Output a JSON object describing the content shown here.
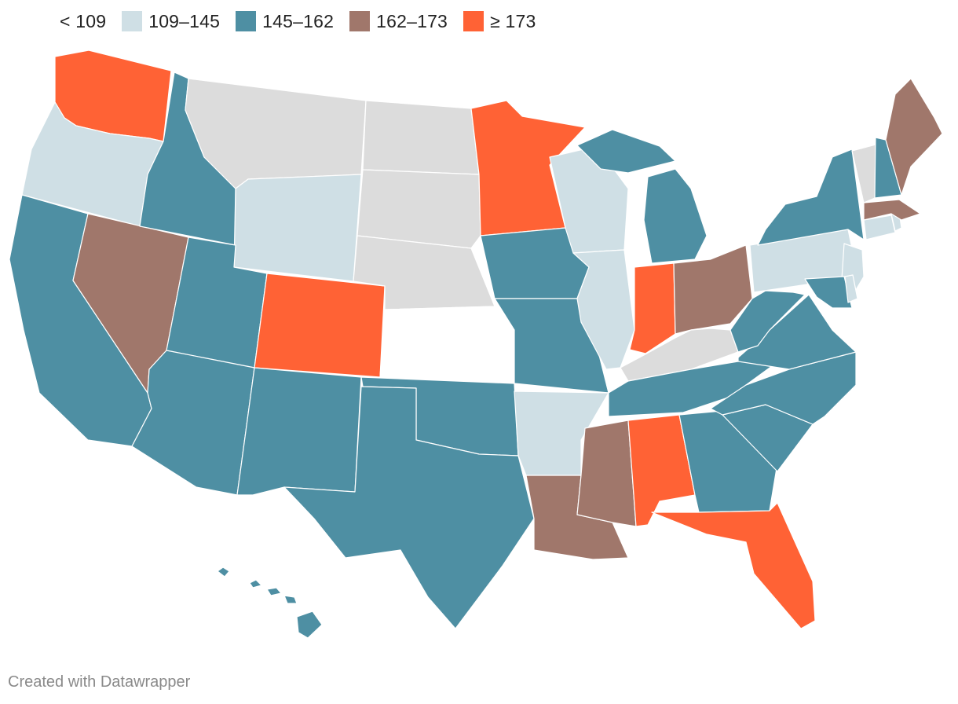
{
  "legend": [
    {
      "label": "< 109",
      "color": "#ffffff"
    },
    {
      "label": "109–145",
      "color": "#cfdfe5"
    },
    {
      "label": "145–162",
      "color": "#4e8fa3"
    },
    {
      "label": "162–173",
      "color": "#a0776b"
    },
    {
      "label": "≥ 173",
      "color": "#ff6235"
    }
  ],
  "no_data_color": "#dcdcdc",
  "states": [
    {
      "name": "Washington",
      "category": "≥ 173"
    },
    {
      "name": "Oregon",
      "category": "109–145"
    },
    {
      "name": "California",
      "category": "145–162"
    },
    {
      "name": "Nevada",
      "category": "162–173"
    },
    {
      "name": "Idaho",
      "category": "145–162"
    },
    {
      "name": "Montana",
      "category": "no-data"
    },
    {
      "name": "Wyoming",
      "category": "109–145"
    },
    {
      "name": "Utah",
      "category": "145–162"
    },
    {
      "name": "Arizona",
      "category": "145–162"
    },
    {
      "name": "Colorado",
      "category": "≥ 173"
    },
    {
      "name": "New Mexico",
      "category": "145–162"
    },
    {
      "name": "North Dakota",
      "category": "no-data"
    },
    {
      "name": "South Dakota",
      "category": "no-data"
    },
    {
      "name": "Nebraska",
      "category": "no-data"
    },
    {
      "name": "Kansas",
      "category": "< 109"
    },
    {
      "name": "Oklahoma",
      "category": "145–162"
    },
    {
      "name": "Texas",
      "category": "145–162"
    },
    {
      "name": "Minnesota",
      "category": "≥ 173"
    },
    {
      "name": "Iowa",
      "category": "145–162"
    },
    {
      "name": "Missouri",
      "category": "145–162"
    },
    {
      "name": "Arkansas",
      "category": "109–145"
    },
    {
      "name": "Louisiana",
      "category": "162–173"
    },
    {
      "name": "Wisconsin",
      "category": "109–145"
    },
    {
      "name": "Illinois",
      "category": "109–145"
    },
    {
      "name": "Michigan",
      "category": "145–162"
    },
    {
      "name": "Indiana",
      "category": "≥ 173"
    },
    {
      "name": "Ohio",
      "category": "162–173"
    },
    {
      "name": "Kentucky",
      "category": "no-data"
    },
    {
      "name": "Tennessee",
      "category": "145–162"
    },
    {
      "name": "Mississippi",
      "category": "162–173"
    },
    {
      "name": "Alabama",
      "category": "≥ 173"
    },
    {
      "name": "Georgia",
      "category": "145–162"
    },
    {
      "name": "Florida",
      "category": "≥ 173"
    },
    {
      "name": "South Carolina",
      "category": "145–162"
    },
    {
      "name": "North Carolina",
      "category": "145–162"
    },
    {
      "name": "Virginia",
      "category": "145–162"
    },
    {
      "name": "West Virginia",
      "category": "145–162"
    },
    {
      "name": "Pennsylvania",
      "category": "109–145"
    },
    {
      "name": "New York",
      "category": "145–162"
    },
    {
      "name": "New Jersey",
      "category": "109–145"
    },
    {
      "name": "Maryland",
      "category": "145–162"
    },
    {
      "name": "Delaware",
      "category": "109–145"
    },
    {
      "name": "Connecticut",
      "category": "109–145"
    },
    {
      "name": "Rhode Island",
      "category": "109–145"
    },
    {
      "name": "Massachusetts",
      "category": "162–173"
    },
    {
      "name": "Vermont",
      "category": "no-data"
    },
    {
      "name": "New Hampshire",
      "category": "145–162"
    },
    {
      "name": "Maine",
      "category": "162–173"
    },
    {
      "name": "Hawaii",
      "category": "145–162"
    }
  ],
  "footer": "Created with Datawrapper"
}
